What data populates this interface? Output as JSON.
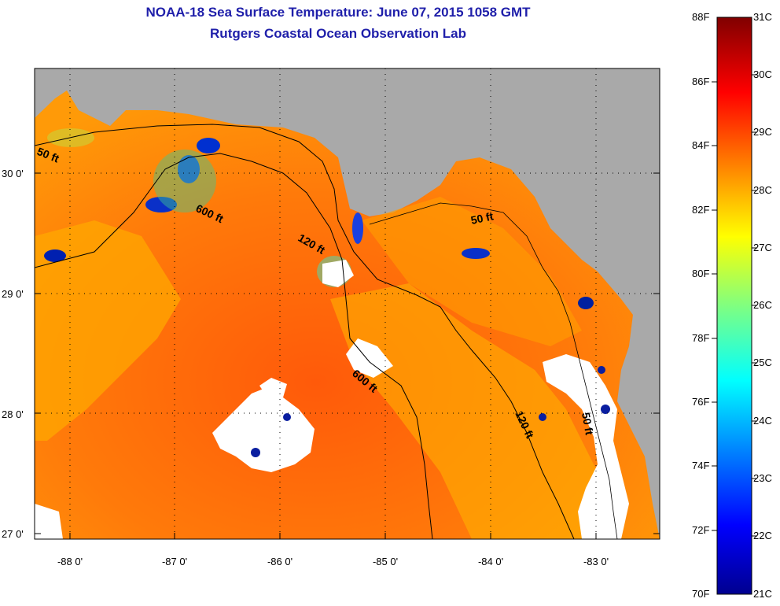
{
  "header": {
    "title": "NOAA-18 Sea Surface Temperature:  June 07, 2015 1058 GMT",
    "subtitle": "Rutgers Coastal Ocean Observation Lab"
  },
  "map": {
    "lat_labels": [
      "30 0'",
      "29 0'",
      "28 0'",
      "27 0'"
    ],
    "lon_labels": [
      "-88 0'",
      "-87 0'",
      "-86 0'",
      "-85 0'",
      "-84 0'",
      "-83 0'"
    ],
    "contour_labels": [
      "50 ft",
      "600 ft",
      "120 ft",
      "50 ft",
      "600 ft",
      "120 ft",
      "50 ft"
    ],
    "colors": {
      "land": "#a9a9a9",
      "cloud": "#ffffff",
      "warm": "#ff5a0a",
      "cool": "#ffa500"
    }
  },
  "colorbar": {
    "fahrenheit": [
      "88F",
      "86F",
      "84F",
      "82F",
      "80F",
      "78F",
      "76F",
      "74F",
      "72F",
      "70F"
    ],
    "celsius": [
      "31C",
      "30C",
      "29C",
      "28C",
      "27C",
      "26C",
      "25C",
      "24C",
      "23C",
      "22C",
      "21C"
    ]
  }
}
